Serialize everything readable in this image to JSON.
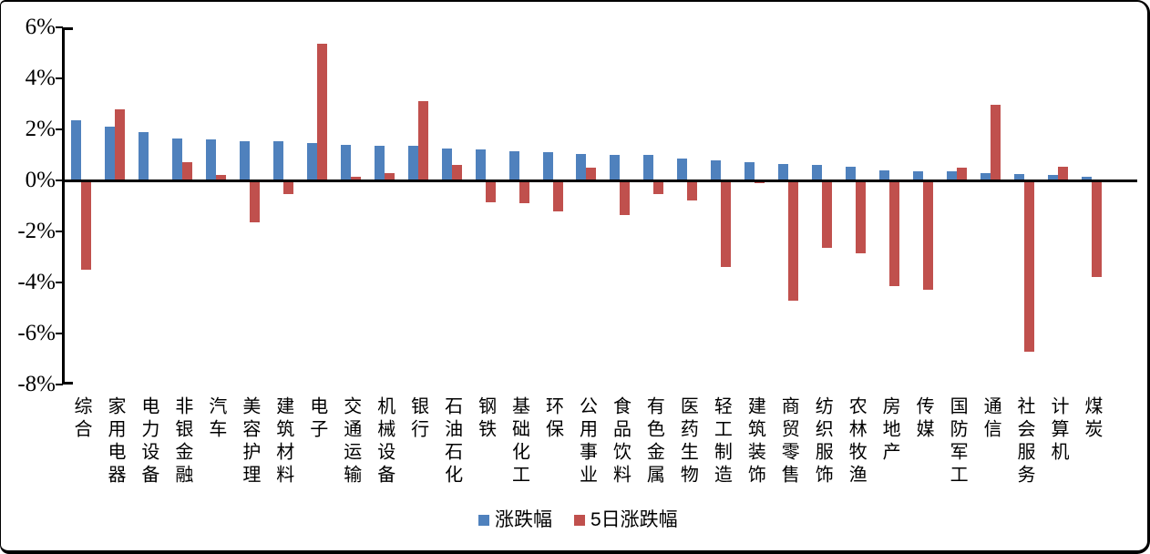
{
  "chart_data": {
    "type": "bar",
    "title": "",
    "categories": [
      "综合",
      "家用电器",
      "电力设备",
      "非银金融",
      "汽车",
      "美容护理",
      "建筑材料",
      "电子",
      "交通运输",
      "机械设备",
      "银行",
      "石油石化",
      "钢铁",
      "基础化工",
      "环保",
      "公用事业",
      "食品饮料",
      "有色金属",
      "医药生物",
      "轻工制造",
      "建筑装饰",
      "商贸零售",
      "纺织服饰",
      "农林牧渔",
      "房地产",
      "传媒",
      "国防军工",
      "通信",
      "社会服务",
      "计算机",
      "煤炭"
    ],
    "series": [
      {
        "name": "涨跌幅",
        "color": "#4F81BD",
        "values": [
          2.35,
          2.1,
          1.9,
          1.65,
          1.6,
          1.55,
          1.55,
          1.45,
          1.4,
          1.35,
          1.35,
          1.25,
          1.2,
          1.15,
          1.1,
          1.05,
          1.0,
          1.0,
          0.85,
          0.8,
          0.7,
          0.65,
          0.6,
          0.55,
          0.4,
          0.35,
          0.35,
          0.3,
          0.25,
          0.2,
          0.15
        ]
      },
      {
        "name": "5日涨跌幅",
        "color": "#C0504D",
        "values": [
          -3.5,
          2.8,
          0,
          0.7,
          0.2,
          -1.65,
          -0.55,
          5.35,
          0.15,
          0.3,
          3.1,
          0.6,
          -0.85,
          -0.9,
          -1.2,
          0.5,
          -1.35,
          -0.55,
          -0.8,
          -3.4,
          -0.1,
          -4.7,
          -2.65,
          -2.85,
          -4.15,
          -4.3,
          0.5,
          2.95,
          -6.7,
          0.55,
          -3.8
        ]
      }
    ],
    "ylim": [
      -8,
      6
    ],
    "ytick_values": [
      6,
      4,
      2,
      0,
      -2,
      -4,
      -6,
      -8
    ],
    "ytick_labels": [
      "6%",
      "4%",
      "2%",
      "0%",
      "-2%",
      "-4%",
      "-6%",
      "-8%"
    ],
    "grid": false,
    "legend_position": "bottom",
    "axis_color": "#000000",
    "background_color": "#ffffff",
    "border_color": "#000000"
  }
}
